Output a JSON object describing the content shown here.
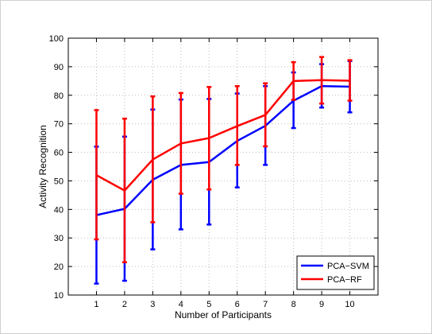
{
  "chart_data": {
    "type": "line",
    "title": "",
    "xlabel": "Number of Participants",
    "ylabel": "Activity Recognition",
    "x": [
      1,
      2,
      3,
      4,
      5,
      6,
      7,
      8,
      9,
      10
    ],
    "xlim": [
      0,
      11
    ],
    "ylim": [
      10,
      100
    ],
    "xticks": [
      "1",
      "2",
      "3",
      "4",
      "5",
      "6",
      "7",
      "8",
      "9",
      "10"
    ],
    "yticks": [
      "10",
      "20",
      "30",
      "40",
      "50",
      "60",
      "70",
      "80",
      "90",
      "100"
    ],
    "grid": true,
    "legend": "bottom-right",
    "series": [
      {
        "name": "PCA−SVM",
        "color": "#0000ff",
        "values": [
          38,
          40.2,
          50.4,
          55.6,
          56.6,
          64,
          69.3,
          78.1,
          83.2,
          83
        ],
        "err_low": [
          14,
          15,
          26,
          33,
          34.7,
          47.7,
          55.6,
          68.5,
          75.7,
          74
        ],
        "err_high": [
          62,
          65.5,
          75,
          78.5,
          78.7,
          80.6,
          83.2,
          88,
          90.9,
          92
        ]
      },
      {
        "name": "PCA−RF",
        "color": "#ff0000",
        "values": [
          52,
          46.6,
          57.5,
          63.1,
          65,
          69.2,
          73.1,
          85,
          85.3,
          85.1
        ],
        "err_low": [
          29.5,
          21.5,
          35.5,
          45.5,
          47,
          55.6,
          62.1,
          78.4,
          77.1,
          78.1
        ],
        "err_high": [
          74.8,
          71.8,
          79.6,
          80.8,
          82.9,
          83.2,
          84.2,
          91.6,
          93.4,
          92.3
        ]
      }
    ]
  }
}
